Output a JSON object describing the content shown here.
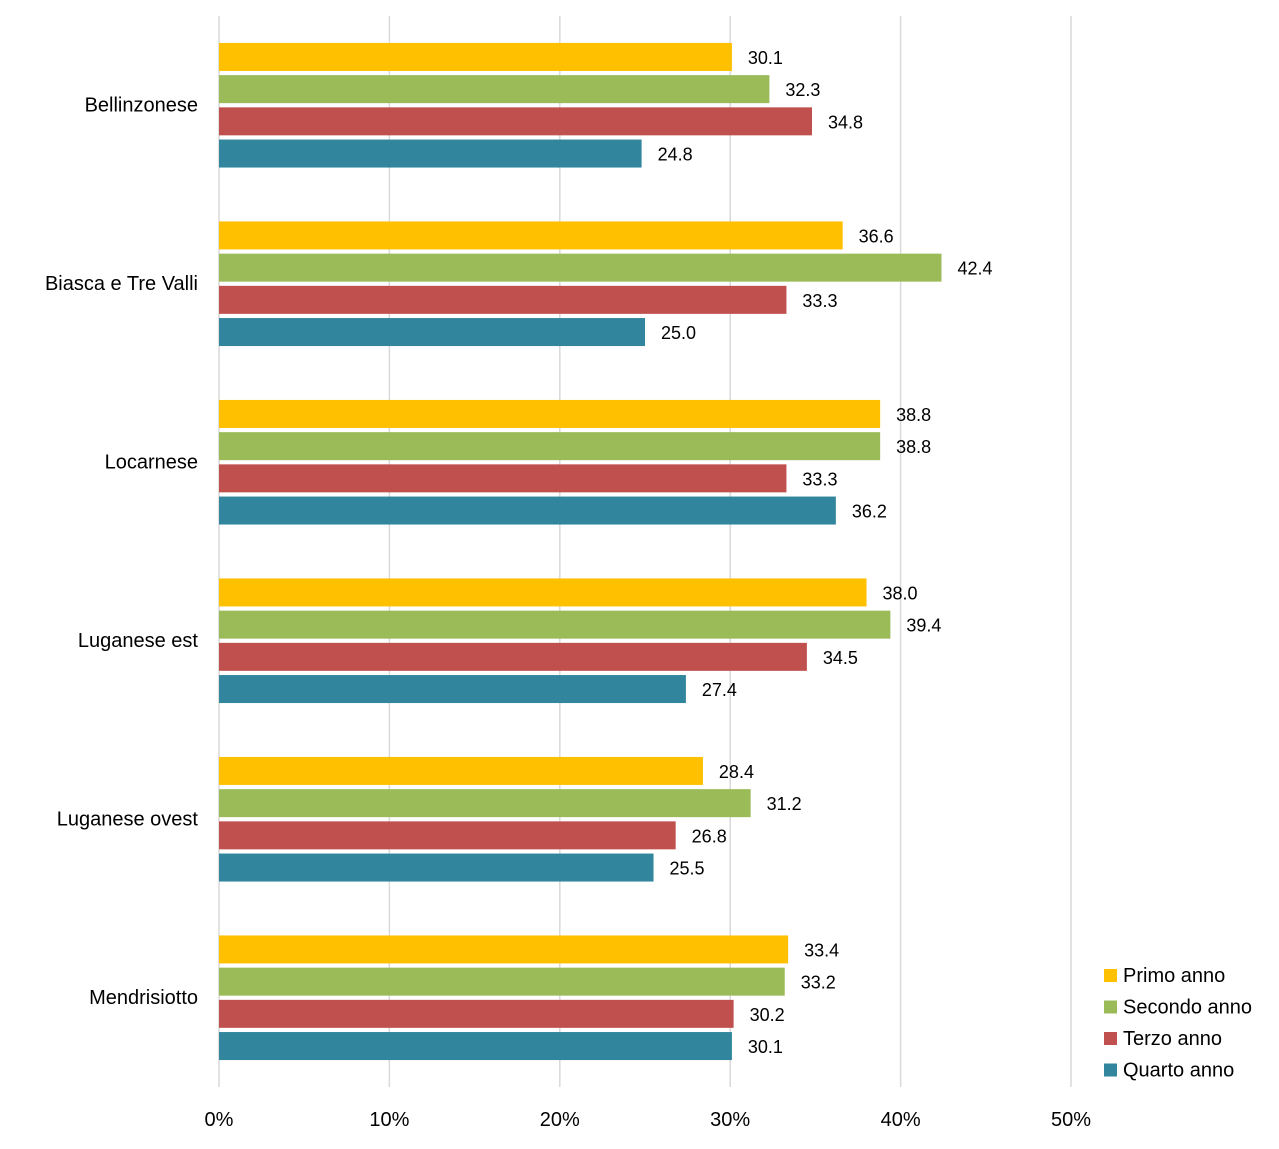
{
  "chart_data": {
    "type": "bar",
    "orientation": "horizontal",
    "categories": [
      "Bellinzonese",
      "Biasca e Tre Valli",
      "Locarnese",
      "Luganese est",
      "Luganese ovest",
      "Mendrisiotto"
    ],
    "series": [
      {
        "name": "Primo anno",
        "color": "#FFC000",
        "values": [
          30.1,
          36.6,
          38.8,
          38.0,
          28.4,
          33.4
        ]
      },
      {
        "name": "Secondo anno",
        "color": "#9BBB59",
        "values": [
          32.3,
          42.4,
          38.8,
          39.4,
          31.2,
          33.2
        ]
      },
      {
        "name": "Terzo anno",
        "color": "#C0504D",
        "values": [
          34.8,
          33.3,
          33.3,
          34.5,
          26.8,
          30.2
        ]
      },
      {
        "name": "Quarto anno",
        "color": "#31859C",
        "values": [
          24.8,
          25.0,
          36.2,
          27.4,
          25.5,
          30.1
        ]
      }
    ],
    "xlim": [
      0,
      50
    ],
    "xticks": [
      "0%",
      "10%",
      "20%",
      "30%",
      "40%",
      "50%"
    ],
    "grid": true,
    "legend_position": "bottom-right",
    "title": "",
    "xlabel": "",
    "ylabel": ""
  }
}
